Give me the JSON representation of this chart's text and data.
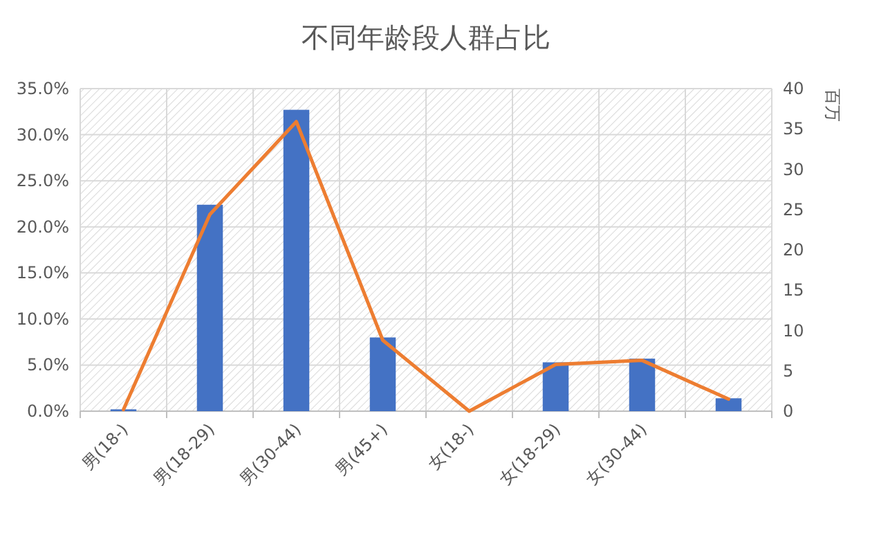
{
  "chart_data": {
    "type": "bar",
    "title": "不同年龄段人群占比",
    "categories": [
      "男(18-)",
      "男(18-29)",
      "男(30-44)",
      "男(45+)",
      "女(18-)",
      "女(18-29)",
      "女(30-44)",
      null
    ],
    "series": [
      {
        "color": "#4472c4",
        "values": [
          0.2,
          22.4,
          32.7,
          8.0,
          0,
          5.3,
          5.7,
          1.4
        ]
      },
      {
        "type": "line",
        "axis": "y2",
        "color": "#ed7d31",
        "values": [
          0.2,
          24.4,
          35.9,
          8.8,
          0,
          5.8,
          6.3,
          1.5
        ]
      }
    ],
    "ylim": [
      0,
      35
    ],
    "yticks": [
      {
        "value": 0,
        "label": "0.0%"
      },
      {
        "value": 5,
        "label": "5.0%"
      },
      {
        "value": 10,
        "label": "10.0%"
      },
      {
        "value": 15,
        "label": "15.0%"
      },
      {
        "value": 20,
        "label": "20.0%"
      },
      {
        "value": 25,
        "label": "25.0%"
      },
      {
        "value": 30,
        "label": "30.0%"
      },
      {
        "value": 35,
        "label": "35.0%"
      }
    ],
    "y2lim": [
      0,
      40
    ],
    "y2ticks": [
      0,
      5,
      10,
      15,
      20,
      25,
      30,
      35,
      40
    ],
    "y2label": "百万",
    "grid": true
  }
}
